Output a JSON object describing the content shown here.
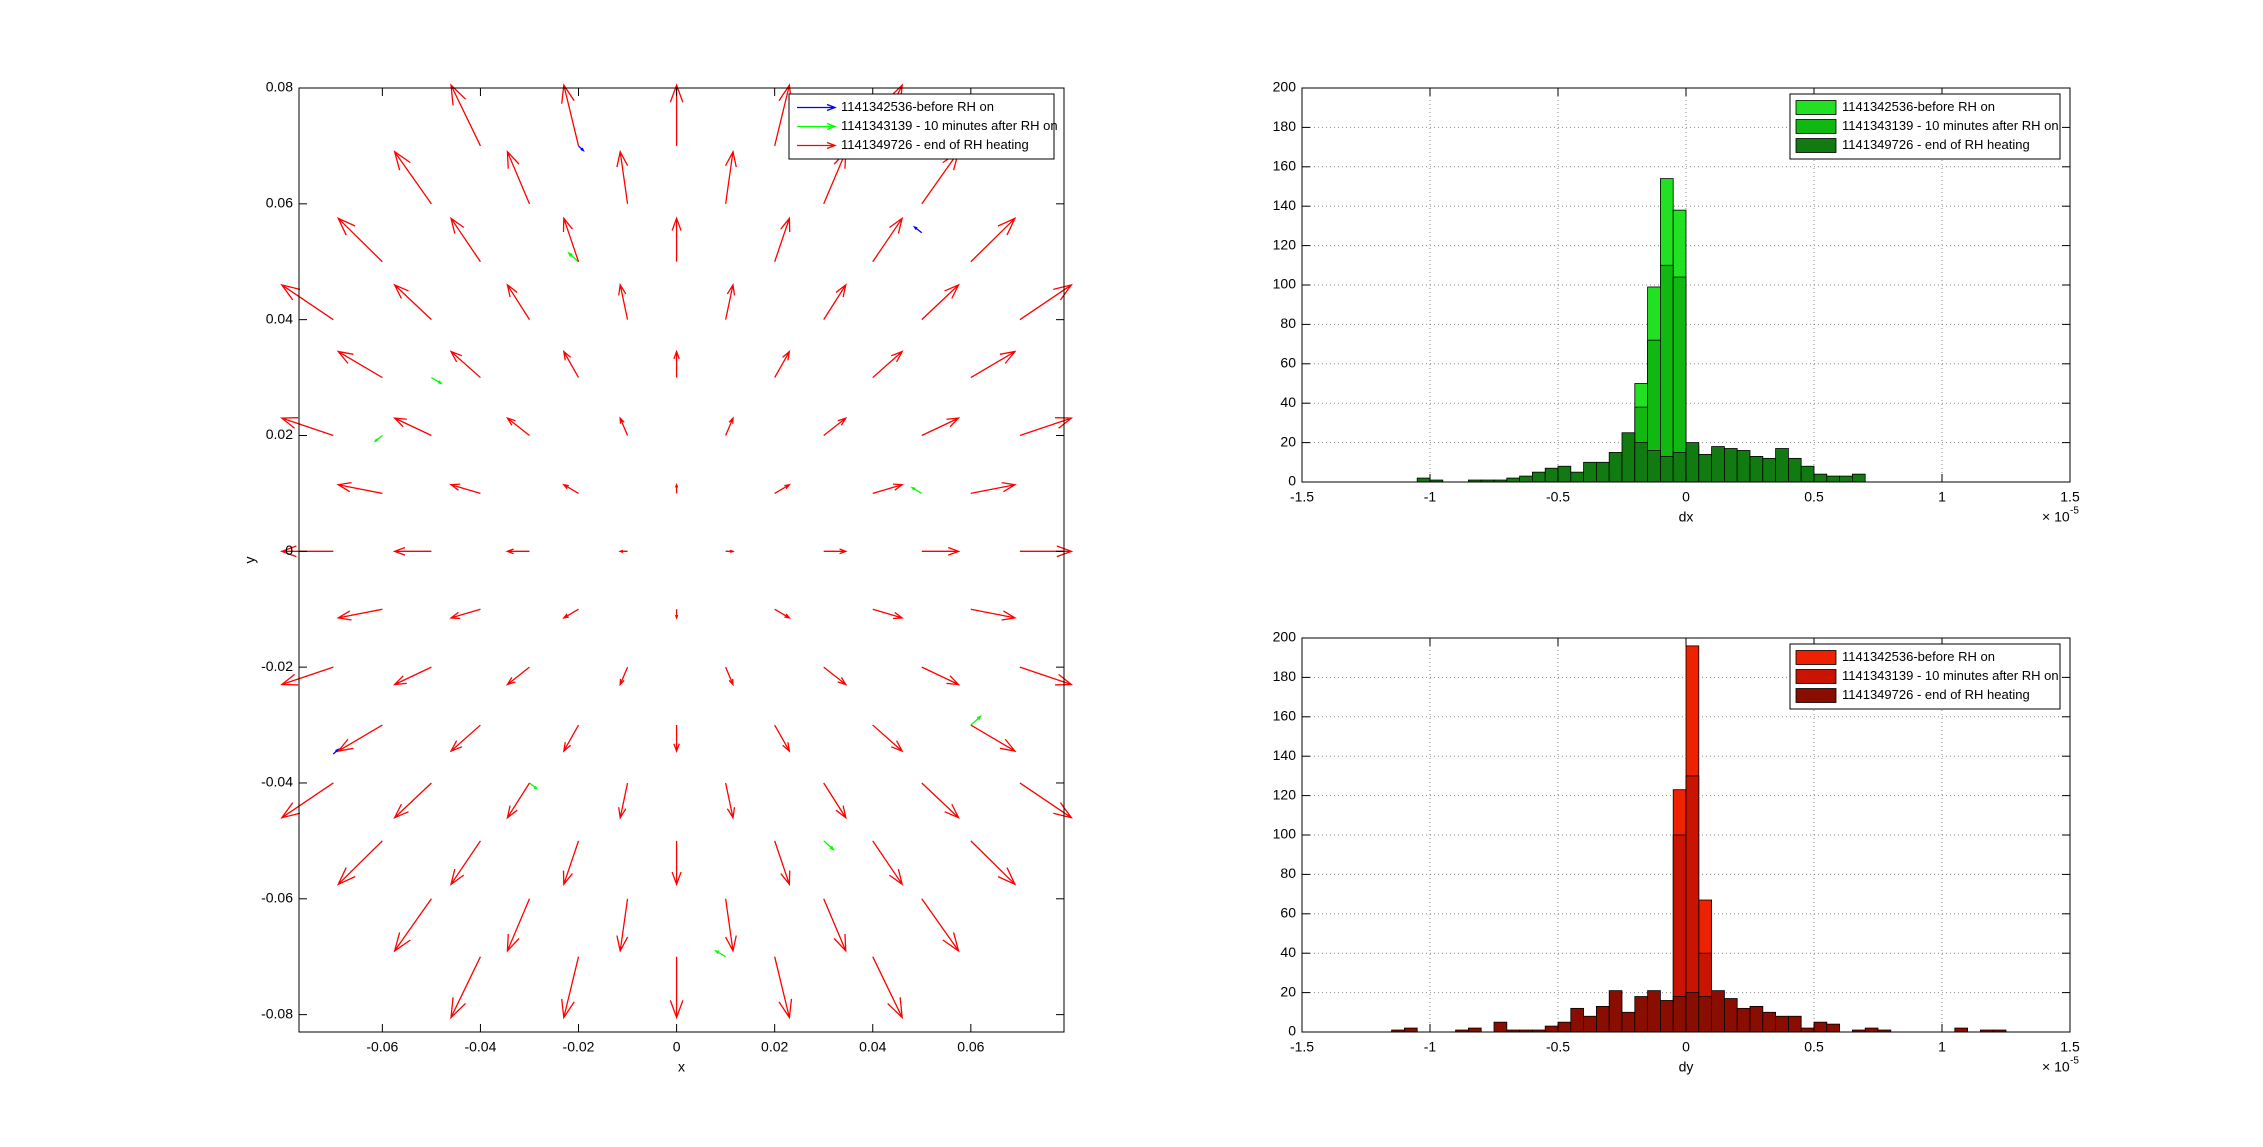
{
  "chart_data": [
    {
      "type": "quiver",
      "xlabel": "x",
      "ylabel": "y",
      "xlim": [
        -0.077,
        0.079
      ],
      "ylim": [
        -0.083,
        0.08
      ],
      "xticks": [
        -0.06,
        -0.04,
        -0.02,
        0,
        0.02,
        0.04,
        0.06
      ],
      "yticks": [
        -0.08,
        -0.06,
        -0.04,
        -0.02,
        0,
        0.02,
        0.04,
        0.06,
        0.08
      ],
      "grid": false,
      "legend": "upper right",
      "series": [
        {
          "name": "1141342536-before RH on",
          "color": "#0000ff",
          "x": [
            -0.07,
            0.05,
            -0.02
          ],
          "y": [
            -0.035,
            0.055,
            0.07
          ],
          "u": [
            0.001,
            -0.0015,
            0.001
          ],
          "v": [
            0.0008,
            0.001,
            -0.0008
          ]
        },
        {
          "name": "1141343139 - 10 minutes after RH on",
          "color": "#00ff00",
          "x": [
            -0.05,
            -0.02,
            0.03,
            0.05,
            -0.03,
            0.01,
            0.06,
            -0.06
          ],
          "y": [
            0.03,
            0.05,
            -0.05,
            0.01,
            -0.04,
            -0.07,
            -0.03,
            0.02
          ],
          "u": [
            0.002,
            -0.002,
            0.002,
            -0.002,
            0.0015,
            -0.002,
            0.002,
            -0.0015
          ],
          "v": [
            -0.001,
            0.0015,
            -0.0015,
            0.001,
            -0.001,
            0.001,
            0.0015,
            -0.001
          ]
        },
        {
          "name": "1141349726 - end of RH heating",
          "color": "#ff0000",
          "x": [
            -0.04,
            -0.02,
            0,
            0.02,
            0.04,
            -0.06,
            -0.04,
            -0.02,
            0,
            0.02,
            0.04,
            0.06,
            -0.06,
            -0.04,
            -0.02,
            0,
            0.02,
            0.04,
            0.06,
            -0.06,
            -0.04,
            -0.02,
            0,
            0.02,
            0.04,
            0.06,
            -0.06,
            -0.04,
            -0.02,
            0,
            0.02,
            0.04,
            0.06,
            -0.06,
            -0.04,
            -0.02,
            0,
            0.02,
            0.04,
            0.06,
            -0.06,
            -0.04,
            -0.02,
            0,
            0.02,
            0.04,
            0.06,
            -0.04,
            -0.02,
            0,
            0.02,
            0.04,
            -0.05,
            -0.03,
            -0.01,
            0.01,
            0.03,
            0.05,
            -0.07,
            -0.05,
            -0.03,
            -0.01,
            0.01,
            0.03,
            0.05,
            0.07,
            -0.07,
            -0.05,
            -0.03,
            -0.01,
            0.01,
            0.03,
            0.05,
            0.07,
            -0.07,
            -0.05,
            -0.03,
            -0.01,
            0.01,
            0.03,
            0.05,
            0.07,
            -0.07,
            -0.05,
            -0.03,
            -0.01,
            0.01,
            0.03,
            0.05,
            0.07,
            -0.07,
            -0.05,
            -0.03,
            -0.01,
            0.01,
            0.03,
            0.05,
            0.07,
            -0.05,
            -0.03,
            -0.01,
            0.01,
            0.03,
            0.05
          ],
          "y": [
            0.07,
            0.07,
            0.07,
            0.07,
            0.07,
            0.05,
            0.05,
            0.05,
            0.05,
            0.05,
            0.05,
            0.05,
            0.03,
            0.03,
            0.03,
            0.03,
            0.03,
            0.03,
            0.03,
            0.01,
            0.01,
            0.01,
            0.01,
            0.01,
            0.01,
            0.01,
            -0.01,
            -0.01,
            -0.01,
            -0.01,
            -0.01,
            -0.01,
            -0.01,
            -0.03,
            -0.03,
            -0.03,
            -0.03,
            -0.03,
            -0.03,
            -0.03,
            -0.05,
            -0.05,
            -0.05,
            -0.05,
            -0.05,
            -0.05,
            -0.05,
            -0.07,
            -0.07,
            -0.07,
            -0.07,
            -0.07,
            0.06,
            0.06,
            0.06,
            0.06,
            0.06,
            0.06,
            0.04,
            0.04,
            0.04,
            0.04,
            0.04,
            0.04,
            0.04,
            0.04,
            0.02,
            0.02,
            0.02,
            0.02,
            0.02,
            0.02,
            0.02,
            0.02,
            0,
            0,
            0,
            0,
            0,
            0,
            0,
            0,
            -0.02,
            -0.02,
            -0.02,
            -0.02,
            -0.02,
            -0.02,
            -0.02,
            -0.02,
            -0.04,
            -0.04,
            -0.04,
            -0.04,
            -0.04,
            -0.04,
            -0.04,
            -0.04,
            -0.06,
            -0.06,
            -0.06,
            -0.06,
            -0.06,
            -0.06
          ],
          "u": [
            -0.006,
            -0.003,
            0,
            0.003,
            0.006,
            -0.009,
            -0.006,
            -0.003,
            0,
            0.003,
            0.006,
            0.009,
            -0.009,
            -0.006,
            -0.003,
            0,
            0.003,
            0.006,
            0.009,
            -0.009,
            -0.006,
            -0.003,
            0,
            0.003,
            0.006,
            0.009,
            -0.009,
            -0.006,
            -0.003,
            0,
            0.003,
            0.006,
            0.009,
            -0.009,
            -0.006,
            -0.003,
            0,
            0.003,
            0.006,
            0.009,
            -0.009,
            -0.006,
            -0.003,
            0,
            0.003,
            0.006,
            0.009,
            -0.006,
            -0.003,
            0,
            0.003,
            0.006,
            -0.0075,
            -0.0045,
            -0.0015,
            0.0015,
            0.0045,
            0.0075,
            -0.0105,
            -0.0075,
            -0.0045,
            -0.0015,
            0.0015,
            0.0045,
            0.0075,
            0.0105,
            -0.0105,
            -0.0075,
            -0.0045,
            -0.0015,
            0.0015,
            0.0045,
            0.0075,
            0.0105,
            -0.0105,
            -0.0075,
            -0.0045,
            -0.0015,
            0.0015,
            0.0045,
            0.0075,
            0.0105,
            -0.0105,
            -0.0075,
            -0.0045,
            -0.0015,
            0.0015,
            0.0045,
            0.0075,
            0.0105,
            -0.0105,
            -0.0075,
            -0.0045,
            -0.0015,
            0.0015,
            0.0045,
            0.0075,
            0.0105,
            -0.0075,
            -0.0045,
            -0.0015,
            0.0015,
            0.0045,
            0.0075
          ],
          "v": [
            0.0105,
            0.0105,
            0.0105,
            0.0105,
            0.0105,
            0.0075,
            0.0075,
            0.0075,
            0.0075,
            0.0075,
            0.0075,
            0.0075,
            0.0045,
            0.0045,
            0.0045,
            0.0045,
            0.0045,
            0.0045,
            0.0045,
            0.0015,
            0.0015,
            0.0015,
            0.0015,
            0.0015,
            0.0015,
            0.0015,
            -0.0015,
            -0.0015,
            -0.0015,
            -0.0015,
            -0.0015,
            -0.0015,
            -0.0015,
            -0.0045,
            -0.0045,
            -0.0045,
            -0.0045,
            -0.0045,
            -0.0045,
            -0.0045,
            -0.0075,
            -0.0075,
            -0.0075,
            -0.0075,
            -0.0075,
            -0.0075,
            -0.0075,
            -0.0105,
            -0.0105,
            -0.0105,
            -0.0105,
            -0.0105,
            0.009,
            0.009,
            0.009,
            0.009,
            0.009,
            0.009,
            0.006,
            0.006,
            0.006,
            0.006,
            0.006,
            0.006,
            0.006,
            0.006,
            0.003,
            0.003,
            0.003,
            0.003,
            0.003,
            0.003,
            0.003,
            0.003,
            0,
            0,
            0,
            0,
            0,
            0,
            0,
            0,
            -0.003,
            -0.003,
            -0.003,
            -0.003,
            -0.003,
            -0.003,
            -0.003,
            -0.003,
            -0.006,
            -0.006,
            -0.006,
            -0.006,
            -0.006,
            -0.006,
            -0.006,
            -0.006,
            -0.009,
            -0.009,
            -0.009,
            -0.009,
            -0.009,
            -0.009
          ]
        }
      ]
    },
    {
      "type": "histogram",
      "xlabel": "dx",
      "x_multiplier": "× 10",
      "x_multiplier_exponent": "-5",
      "xlim": [
        -1.5,
        1.5
      ],
      "ylim": [
        0,
        200
      ],
      "xticks": [
        -1.5,
        -1,
        -0.5,
        0,
        0.5,
        1,
        1.5
      ],
      "yticks": [
        0,
        20,
        40,
        60,
        80,
        100,
        120,
        140,
        160,
        180,
        200
      ],
      "grid": true,
      "legend": "upper right",
      "bins": [
        -1.1,
        -1.05,
        -1,
        -0.95,
        -0.9,
        -0.85,
        -0.8,
        -0.75,
        -0.7,
        -0.65,
        -0.6,
        -0.55,
        -0.5,
        -0.45,
        -0.4,
        -0.35,
        -0.3,
        -0.25,
        -0.2,
        -0.15,
        -0.1,
        -0.05,
        0,
        0.05,
        0.1,
        0.15,
        0.2,
        0.25,
        0.3,
        0.35,
        0.4,
        0.45,
        0.5,
        0.55,
        0.6,
        0.65,
        0.7
      ],
      "series": [
        {
          "name": "1141342536-before RH on",
          "color": "#22e022",
          "values": [
            0,
            0,
            0,
            0,
            0,
            0,
            0,
            0,
            0,
            0,
            0,
            0,
            0,
            0,
            0,
            0,
            0,
            5,
            50,
            99,
            154,
            138,
            18,
            3,
            0,
            0,
            0,
            0,
            0,
            0,
            0,
            0,
            0,
            0,
            0,
            0
          ]
        },
        {
          "name": "1141343139 - 10 minutes after RH on",
          "color": "#11b811",
          "values": [
            0,
            0,
            0,
            0,
            0,
            0,
            0,
            0,
            0,
            0,
            0,
            0,
            0,
            0,
            0,
            0,
            0,
            3,
            38,
            72,
            110,
            104,
            12,
            0,
            0,
            0,
            0,
            0,
            0,
            0,
            0,
            0,
            0,
            0,
            0,
            0
          ]
        },
        {
          "name": "1141349726 - end of RH heating",
          "color": "#117a11",
          "values": [
            0,
            2,
            1,
            0,
            0,
            1,
            1,
            1,
            2,
            3,
            5,
            7,
            8,
            5,
            10,
            10,
            15,
            25,
            20,
            16,
            13,
            15,
            20,
            14,
            18,
            17,
            16,
            13,
            12,
            17,
            12,
            8,
            4,
            3,
            3,
            4
          ]
        }
      ]
    },
    {
      "type": "histogram",
      "xlabel": "dy",
      "x_multiplier": "× 10",
      "x_multiplier_exponent": "-5",
      "xlim": [
        -1.5,
        1.5
      ],
      "ylim": [
        0,
        200
      ],
      "xticks": [
        -1.5,
        -1,
        -0.5,
        0,
        0.5,
        1,
        1.5
      ],
      "yticks": [
        0,
        20,
        40,
        60,
        80,
        100,
        120,
        140,
        160,
        180,
        200
      ],
      "grid": true,
      "legend": "upper right",
      "bins": [
        -1.2,
        -1.15,
        -1.1,
        -1.05,
        -1,
        -0.95,
        -0.9,
        -0.85,
        -0.8,
        -0.75,
        -0.7,
        -0.65,
        -0.6,
        -0.55,
        -0.5,
        -0.45,
        -0.4,
        -0.35,
        -0.3,
        -0.25,
        -0.2,
        -0.15,
        -0.1,
        -0.05,
        0,
        0.05,
        0.1,
        0.15,
        0.2,
        0.25,
        0.3,
        0.35,
        0.4,
        0.45,
        0.5,
        0.55,
        0.6,
        0.65,
        0.7,
        0.75,
        0.8,
        0.85,
        0.9,
        0.95,
        1,
        1.05,
        1.1,
        1.15,
        1.2,
        1.25
      ],
      "series": [
        {
          "name": "1141342536-before RH on",
          "color": "#ee2200",
          "values": [
            0,
            0,
            0,
            0,
            0,
            0,
            0,
            0,
            0,
            0,
            0,
            0,
            0,
            0,
            0,
            0,
            0,
            0,
            0,
            0,
            0,
            0,
            10,
            123,
            196,
            67,
            5,
            0,
            0,
            0,
            0,
            0,
            0,
            0,
            0,
            0,
            0,
            0,
            0,
            0,
            0,
            0,
            0,
            0,
            0,
            0,
            0,
            0,
            0
          ]
        },
        {
          "name": "1141343139 - 10 minutes after RH on",
          "color": "#c81400",
          "values": [
            0,
            0,
            0,
            0,
            0,
            0,
            0,
            0,
            0,
            0,
            0,
            0,
            0,
            0,
            0,
            0,
            0,
            0,
            0,
            0,
            0,
            0,
            8,
            100,
            130,
            40,
            3,
            0,
            0,
            0,
            0,
            0,
            0,
            0,
            0,
            0,
            0,
            0,
            0,
            0,
            0,
            0,
            0,
            0,
            0,
            0,
            0,
            0,
            0
          ]
        },
        {
          "name": "1141349726 - end of RH heating",
          "color": "#8a0e00",
          "values": [
            0,
            1,
            2,
            0,
            0,
            0,
            1,
            2,
            0,
            5,
            1,
            1,
            1,
            3,
            5,
            12,
            8,
            13,
            21,
            10,
            18,
            21,
            16,
            18,
            20,
            18,
            21,
            17,
            12,
            13,
            10,
            8,
            8,
            2,
            5,
            4,
            0,
            1,
            2,
            1,
            0,
            0,
            0,
            0,
            0,
            2,
            0,
            1,
            1
          ]
        }
      ]
    }
  ]
}
